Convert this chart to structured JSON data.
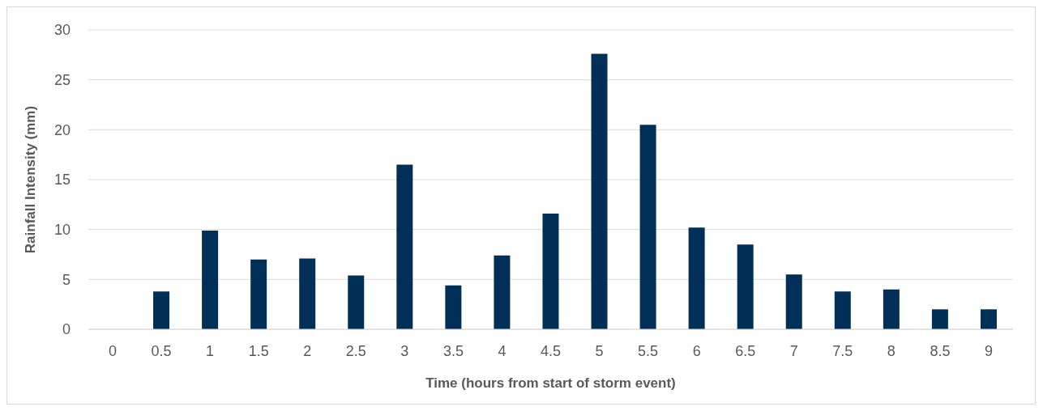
{
  "chart_data": {
    "type": "bar",
    "xlabel": "Time (hours from start of storm event)",
    "ylabel": "Rainfall Intensity (mm)",
    "categories": [
      "0",
      "0.5",
      "1",
      "1.5",
      "2",
      "2.5",
      "3",
      "3.5",
      "4",
      "4.5",
      "5",
      "5.5",
      "6",
      "6.5",
      "7",
      "7.5",
      "8",
      "8.5",
      "9"
    ],
    "values": [
      0,
      3.8,
      9.9,
      7.0,
      7.1,
      5.4,
      16.5,
      4.4,
      7.4,
      11.6,
      27.6,
      20.5,
      10.2,
      8.5,
      5.5,
      3.8,
      4.0,
      2.0,
      2.0
    ],
    "color": "#003057",
    "ylim": [
      0,
      30
    ],
    "yticks": [
      0,
      5,
      10,
      15,
      20,
      25,
      30
    ],
    "grid": "y"
  }
}
